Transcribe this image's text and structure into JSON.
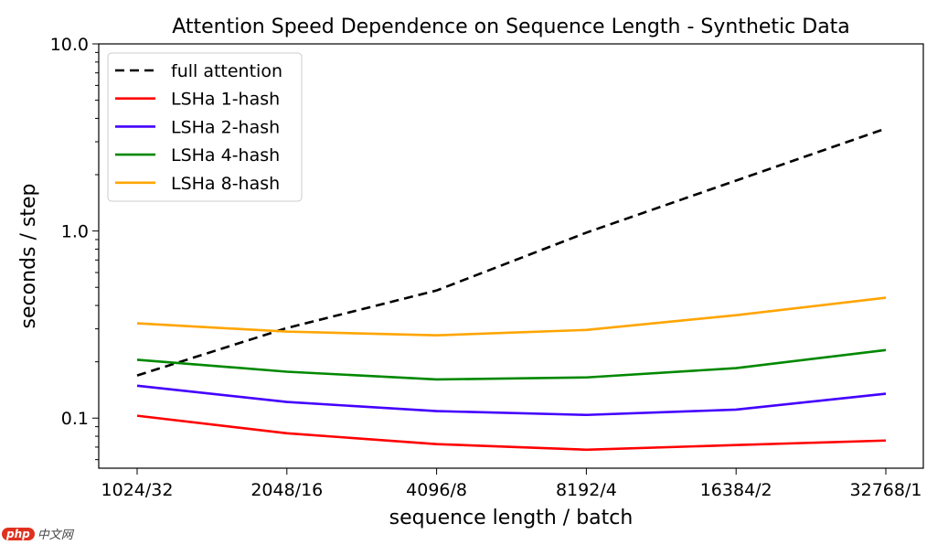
{
  "chart_data": {
    "type": "line",
    "title": "Attention Speed Dependence on Sequence Length - Synthetic Data",
    "xlabel": "sequence length / batch",
    "ylabel": "seconds / step",
    "categories": [
      "1024/32",
      "2048/16",
      "4096/8",
      "8192/4",
      "16384/2",
      "32768/1"
    ],
    "yscale": "log",
    "ylim": [
      0.054,
      10.0
    ],
    "yticks": [
      {
        "value": 0.1,
        "label": "0.1"
      },
      {
        "value": 1.0,
        "label": "1.0"
      },
      {
        "value": 10.0,
        "label": "10.0"
      }
    ],
    "grid": false,
    "legend_position": "top-left",
    "series": [
      {
        "name": "full attention",
        "color": "#000000",
        "dash": true,
        "values": [
          0.169,
          0.303,
          0.481,
          0.98,
          1.86,
          3.53
        ]
      },
      {
        "name": "LSHa 1-hash",
        "color": "#ff0000",
        "dash": false,
        "values": [
          0.103,
          0.083,
          0.0726,
          0.0678,
          0.0718,
          0.0759
        ]
      },
      {
        "name": "LSHa 2-hash",
        "color": "#4400ff",
        "dash": false,
        "values": [
          0.149,
          0.122,
          0.109,
          0.104,
          0.111,
          0.135
        ]
      },
      {
        "name": "LSHa 4-hash",
        "color": "#008800",
        "dash": false,
        "values": [
          0.205,
          0.177,
          0.161,
          0.165,
          0.185,
          0.231
        ]
      },
      {
        "name": "LSHa 8-hash",
        "color": "#ffa500",
        "dash": false,
        "values": [
          0.321,
          0.29,
          0.277,
          0.296,
          0.355,
          0.44
        ]
      }
    ]
  },
  "watermark": {
    "badge": "php",
    "text": "中文网"
  }
}
